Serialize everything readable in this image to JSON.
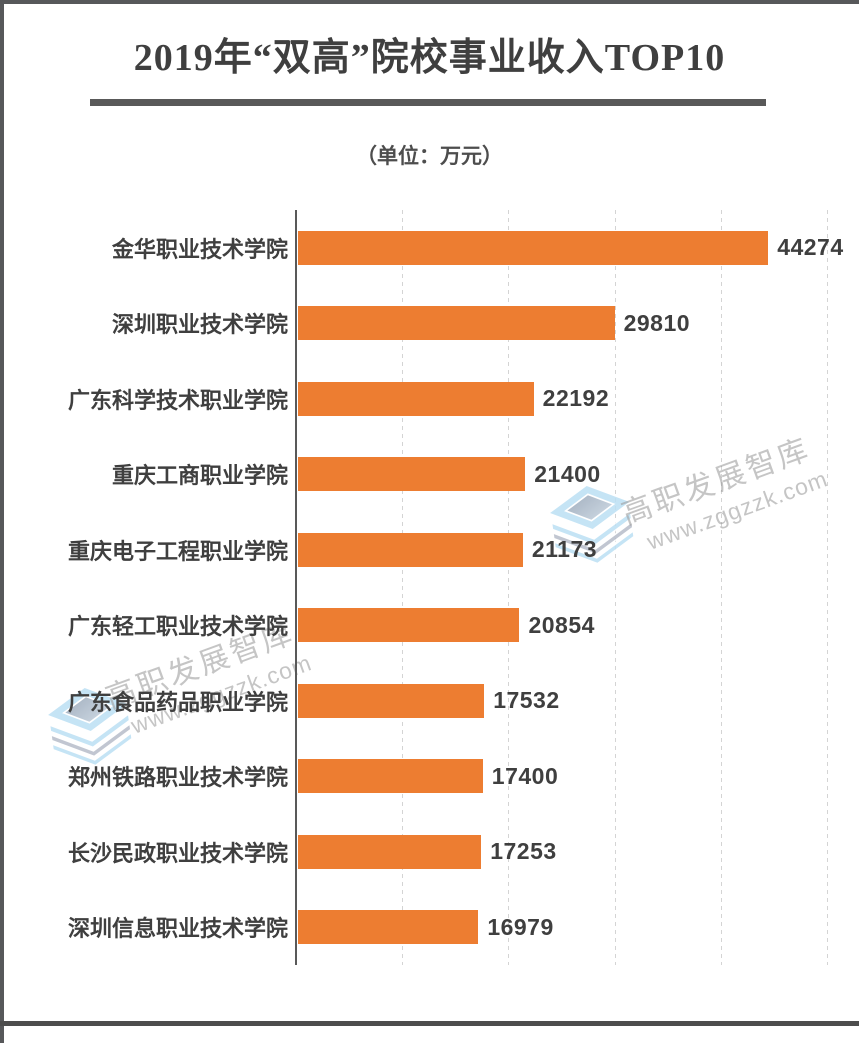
{
  "title": "2019年“双高”院校事业收入TOP10",
  "subtitle": "（单位：万元）",
  "watermark": {
    "text": "高职发展智库",
    "url": "www.zggzzk.com"
  },
  "colors": {
    "bar": "#ED7D31",
    "label_text": "#3F3F3F",
    "axis": "#595959",
    "gridline": "#D4D4D4",
    "frame": "#57585A",
    "watermark_blue": "#BCE0F4",
    "watermark_gray": "#B7BDC9"
  },
  "chart_data": {
    "type": "bar",
    "orientation": "horizontal",
    "title": "2019年“双高”院校事业收入TOP10",
    "unit_label": "（单位：万元）",
    "categories": [
      "金华职业技术学院",
      "深圳职业技术学院",
      "广东科学技术职业学院",
      "重庆工商职业学院",
      "重庆电子工程职业学院",
      "广东轻工职业技术学院",
      "广东食品药品职业学院",
      "郑州铁路职业技术学院",
      "长沙民政职业技术学院",
      "深圳信息职业技术学院"
    ],
    "values": [
      44274,
      29810,
      22192,
      21400,
      21173,
      20854,
      17532,
      17400,
      17253,
      16979
    ],
    "xlim": [
      0,
      50000
    ],
    "gridline_interval": 10000,
    "grid": true,
    "value_labels": true,
    "legend": false
  }
}
